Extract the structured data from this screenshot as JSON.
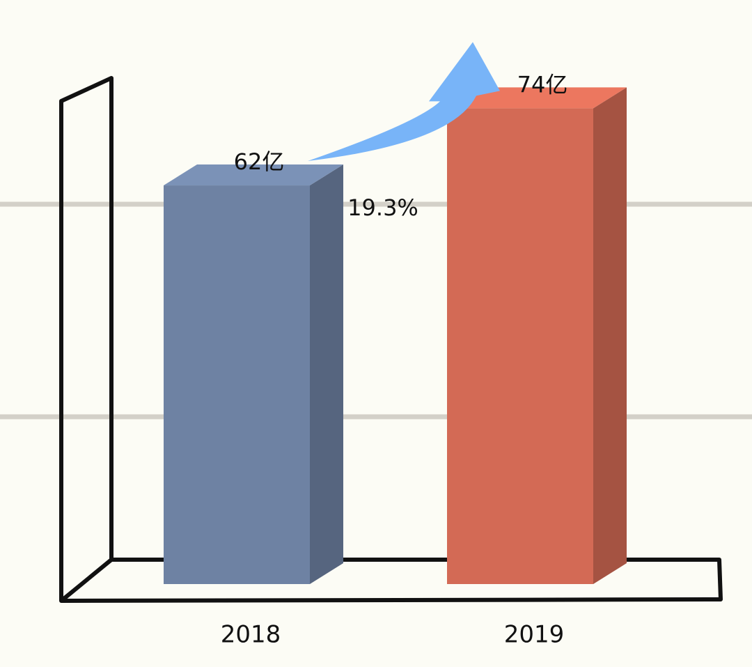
{
  "chart_data": {
    "type": "bar3d",
    "categories": [
      "2018",
      "2019"
    ],
    "values": [
      62,
      74
    ],
    "value_labels": [
      "62亿",
      "74亿"
    ],
    "colors": [
      "#6e82a3",
      "#d36a55"
    ],
    "annotation": "19.3%",
    "ylim": [
      0,
      80
    ]
  }
}
